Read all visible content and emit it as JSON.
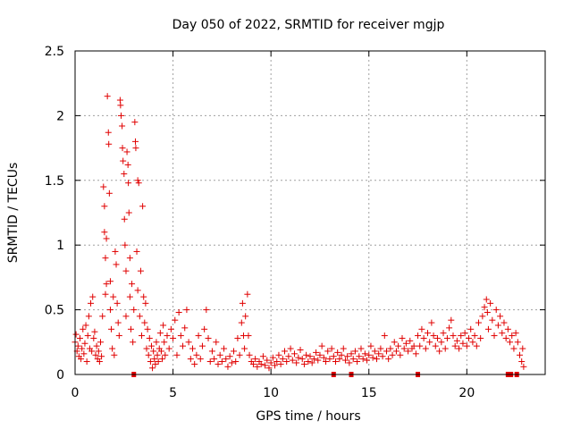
{
  "chart_data": {
    "type": "scatter",
    "title": "Day 050 of 2022, SRMTID for receiver mgjp",
    "xlabel": "GPS time / hours",
    "ylabel": "SRMTID / TECUs",
    "xlim": [
      0,
      24
    ],
    "ylim": [
      0,
      2.5
    ],
    "x_ticks": [
      0,
      5,
      10,
      15,
      20
    ],
    "x_tick_labels": [
      "0",
      "5",
      "10",
      "15",
      "20"
    ],
    "y_ticks": [
      0,
      0.5,
      1,
      1.5,
      2,
      2.5
    ],
    "y_tick_labels": [
      "0",
      "0.5",
      "1",
      "1.5",
      "2",
      "2.5"
    ],
    "grid": true,
    "marker": "plus",
    "color": "#e00000",
    "series": [
      {
        "name": "SRMTID",
        "points": [
          [
            0.0,
            0.25
          ],
          [
            0.05,
            0.31
          ],
          [
            0.1,
            0.18
          ],
          [
            0.15,
            0.22
          ],
          [
            0.2,
            0.14
          ],
          [
            0.25,
            0.28
          ],
          [
            0.3,
            0.12
          ],
          [
            0.35,
            0.2
          ],
          [
            0.4,
            0.35
          ],
          [
            0.45,
            0.16
          ],
          [
            0.5,
            0.24
          ],
          [
            0.55,
            0.38
          ],
          [
            0.6,
            0.1
          ],
          [
            0.65,
            0.3
          ],
          [
            0.7,
            0.45
          ],
          [
            0.75,
            0.2
          ],
          [
            0.8,
            0.55
          ],
          [
            0.85,
            0.18
          ],
          [
            0.9,
            0.6
          ],
          [
            0.95,
            0.28
          ],
          [
            1.0,
            0.33
          ],
          [
            1.05,
            0.15
          ],
          [
            1.1,
            0.22
          ],
          [
            1.15,
            0.12
          ],
          [
            1.2,
            0.18
          ],
          [
            1.25,
            0.1
          ],
          [
            1.3,
            0.25
          ],
          [
            1.35,
            0.14
          ],
          [
            1.4,
            0.45
          ],
          [
            1.45,
            1.45
          ],
          [
            1.5,
            1.3
          ],
          [
            1.5,
            1.1
          ],
          [
            1.55,
            0.9
          ],
          [
            1.55,
            0.62
          ],
          [
            1.6,
            1.05
          ],
          [
            1.6,
            0.7
          ],
          [
            1.65,
            2.15
          ],
          [
            1.7,
            1.87
          ],
          [
            1.72,
            1.78
          ],
          [
            1.75,
            1.4
          ],
          [
            1.8,
            0.72
          ],
          [
            1.8,
            0.5
          ],
          [
            1.85,
            0.35
          ],
          [
            1.9,
            0.2
          ],
          [
            1.95,
            0.6
          ],
          [
            2.0,
            0.15
          ],
          [
            2.05,
            0.95
          ],
          [
            2.1,
            0.85
          ],
          [
            2.15,
            0.55
          ],
          [
            2.2,
            0.4
          ],
          [
            2.25,
            0.3
          ],
          [
            2.3,
            2.12
          ],
          [
            2.32,
            2.08
          ],
          [
            2.35,
            2.0
          ],
          [
            2.4,
            1.92
          ],
          [
            2.42,
            1.75
          ],
          [
            2.45,
            1.65
          ],
          [
            2.5,
            1.55
          ],
          [
            2.52,
            1.2
          ],
          [
            2.55,
            1.0
          ],
          [
            2.6,
            0.8
          ],
          [
            2.6,
            0.45
          ],
          [
            2.65,
            1.72
          ],
          [
            2.7,
            1.62
          ],
          [
            2.72,
            1.48
          ],
          [
            2.75,
            1.25
          ],
          [
            2.8,
            0.9
          ],
          [
            2.8,
            0.6
          ],
          [
            2.85,
            0.35
          ],
          [
            2.9,
            0.7
          ],
          [
            2.95,
            0.25
          ],
          [
            3.0,
            0.5
          ],
          [
            3.05,
            1.95
          ],
          [
            3.08,
            1.8
          ],
          [
            3.1,
            1.75
          ],
          [
            3.15,
            0.95
          ],
          [
            3.2,
            0.65
          ],
          [
            3.2,
            1.5
          ],
          [
            3.25,
            1.48
          ],
          [
            3.3,
            0.45
          ],
          [
            3.35,
            0.8
          ],
          [
            3.4,
            0.3
          ],
          [
            3.45,
            1.3
          ],
          [
            3.5,
            0.6
          ],
          [
            3.55,
            0.4
          ],
          [
            3.6,
            0.55
          ],
          [
            3.65,
            0.2
          ],
          [
            3.7,
            0.35
          ],
          [
            3.75,
            0.15
          ],
          [
            3.8,
            0.28
          ],
          [
            3.85,
            0.1
          ],
          [
            3.9,
            0.22
          ],
          [
            3.95,
            0.05
          ],
          [
            4.0,
            0.18
          ],
          [
            4.05,
            0.12
          ],
          [
            4.1,
            0.08
          ],
          [
            4.15,
            0.25
          ],
          [
            4.2,
            0.15
          ],
          [
            4.25,
            0.1
          ],
          [
            4.3,
            0.2
          ],
          [
            4.35,
            0.32
          ],
          [
            4.4,
            0.18
          ],
          [
            4.45,
            0.12
          ],
          [
            4.5,
            0.38
          ],
          [
            4.55,
            0.25
          ],
          [
            4.6,
            0.15
          ],
          [
            4.7,
            0.3
          ],
          [
            4.8,
            0.2
          ],
          [
            4.9,
            0.35
          ],
          [
            5.0,
            0.28
          ],
          [
            5.1,
            0.42
          ],
          [
            5.2,
            0.15
          ],
          [
            5.3,
            0.48
          ],
          [
            5.4,
            0.3
          ],
          [
            5.5,
            0.22
          ],
          [
            5.6,
            0.36
          ],
          [
            5.7,
            0.5
          ],
          [
            5.8,
            0.25
          ],
          [
            5.9,
            0.12
          ],
          [
            6.0,
            0.2
          ],
          [
            6.1,
            0.08
          ],
          [
            6.2,
            0.15
          ],
          [
            6.3,
            0.3
          ],
          [
            6.4,
            0.12
          ],
          [
            6.5,
            0.22
          ],
          [
            6.6,
            0.35
          ],
          [
            6.7,
            0.5
          ],
          [
            6.8,
            0.28
          ],
          [
            6.9,
            0.1
          ],
          [
            7.0,
            0.18
          ],
          [
            7.1,
            0.12
          ],
          [
            7.2,
            0.25
          ],
          [
            7.3,
            0.08
          ],
          [
            7.4,
            0.15
          ],
          [
            7.5,
            0.1
          ],
          [
            7.6,
            0.2
          ],
          [
            7.7,
            0.12
          ],
          [
            7.8,
            0.06
          ],
          [
            7.9,
            0.14
          ],
          [
            8.0,
            0.09
          ],
          [
            8.1,
            0.18
          ],
          [
            8.2,
            0.1
          ],
          [
            8.3,
            0.28
          ],
          [
            8.4,
            0.15
          ],
          [
            8.5,
            0.4
          ],
          [
            8.55,
            0.55
          ],
          [
            8.6,
            0.3
          ],
          [
            8.65,
            0.2
          ],
          [
            8.7,
            0.45
          ],
          [
            8.8,
            0.62
          ],
          [
            8.85,
            0.3
          ],
          [
            8.9,
            0.15
          ],
          [
            9.0,
            0.1
          ],
          [
            9.1,
            0.08
          ],
          [
            9.2,
            0.12
          ],
          [
            9.3,
            0.06
          ],
          [
            9.4,
            0.1
          ],
          [
            9.5,
            0.08
          ],
          [
            9.6,
            0.14
          ],
          [
            9.7,
            0.07
          ],
          [
            9.8,
            0.11
          ],
          [
            9.9,
            0.05
          ],
          [
            10.0,
            0.09
          ],
          [
            10.1,
            0.13
          ],
          [
            10.2,
            0.07
          ],
          [
            10.3,
            0.1
          ],
          [
            10.4,
            0.15
          ],
          [
            10.5,
            0.08
          ],
          [
            10.6,
            0.12
          ],
          [
            10.7,
            0.18
          ],
          [
            10.8,
            0.1
          ],
          [
            10.9,
            0.14
          ],
          [
            11.0,
            0.2
          ],
          [
            11.1,
            0.11
          ],
          [
            11.2,
            0.16
          ],
          [
            11.3,
            0.09
          ],
          [
            11.4,
            0.13
          ],
          [
            11.5,
            0.19
          ],
          [
            11.6,
            0.12
          ],
          [
            11.7,
            0.08
          ],
          [
            11.8,
            0.15
          ],
          [
            11.9,
            0.1
          ],
          [
            12.0,
            0.14
          ],
          [
            12.1,
            0.09
          ],
          [
            12.2,
            0.12
          ],
          [
            12.3,
            0.17
          ],
          [
            12.4,
            0.11
          ],
          [
            12.5,
            0.15
          ],
          [
            12.6,
            0.22
          ],
          [
            12.7,
            0.13
          ],
          [
            12.8,
            0.1
          ],
          [
            12.9,
            0.18
          ],
          [
            13.0,
            0.12
          ],
          [
            13.1,
            0.2
          ],
          [
            13.2,
            0.14
          ],
          [
            13.3,
            0.1
          ],
          [
            13.4,
            0.17
          ],
          [
            13.5,
            0.12
          ],
          [
            13.6,
            0.15
          ],
          [
            13.7,
            0.2
          ],
          [
            13.8,
            0.11
          ],
          [
            13.9,
            0.14
          ],
          [
            14.0,
            0.09
          ],
          [
            14.1,
            0.16
          ],
          [
            14.2,
            0.12
          ],
          [
            14.3,
            0.18
          ],
          [
            14.4,
            0.1
          ],
          [
            14.5,
            0.14
          ],
          [
            14.6,
            0.2
          ],
          [
            14.7,
            0.12
          ],
          [
            14.8,
            0.16
          ],
          [
            14.9,
            0.11
          ],
          [
            15.0,
            0.15
          ],
          [
            15.1,
            0.22
          ],
          [
            15.2,
            0.13
          ],
          [
            15.3,
            0.18
          ],
          [
            15.4,
            0.12
          ],
          [
            15.5,
            0.16
          ],
          [
            15.6,
            0.2
          ],
          [
            15.7,
            0.14
          ],
          [
            15.8,
            0.3
          ],
          [
            15.9,
            0.18
          ],
          [
            16.0,
            0.12
          ],
          [
            16.1,
            0.2
          ],
          [
            16.2,
            0.15
          ],
          [
            16.3,
            0.25
          ],
          [
            16.4,
            0.18
          ],
          [
            16.5,
            0.22
          ],
          [
            16.6,
            0.15
          ],
          [
            16.7,
            0.28
          ],
          [
            16.8,
            0.2
          ],
          [
            16.9,
            0.24
          ],
          [
            17.0,
            0.18
          ],
          [
            17.1,
            0.26
          ],
          [
            17.2,
            0.2
          ],
          [
            17.3,
            0.22
          ],
          [
            17.4,
            0.16
          ],
          [
            17.5,
            0.3
          ],
          [
            17.6,
            0.22
          ],
          [
            17.7,
            0.35
          ],
          [
            17.8,
            0.28
          ],
          [
            17.9,
            0.2
          ],
          [
            18.0,
            0.32
          ],
          [
            18.1,
            0.25
          ],
          [
            18.2,
            0.4
          ],
          [
            18.3,
            0.3
          ],
          [
            18.4,
            0.22
          ],
          [
            18.5,
            0.28
          ],
          [
            18.6,
            0.18
          ],
          [
            18.7,
            0.25
          ],
          [
            18.8,
            0.32
          ],
          [
            18.9,
            0.2
          ],
          [
            19.0,
            0.28
          ],
          [
            19.1,
            0.36
          ],
          [
            19.2,
            0.42
          ],
          [
            19.3,
            0.3
          ],
          [
            19.4,
            0.22
          ],
          [
            19.5,
            0.26
          ],
          [
            19.6,
            0.2
          ],
          [
            19.7,
            0.3
          ],
          [
            19.8,
            0.24
          ],
          [
            19.9,
            0.32
          ],
          [
            20.0,
            0.22
          ],
          [
            20.1,
            0.28
          ],
          [
            20.2,
            0.35
          ],
          [
            20.3,
            0.25
          ],
          [
            20.4,
            0.3
          ],
          [
            20.5,
            0.22
          ],
          [
            20.6,
            0.4
          ],
          [
            20.7,
            0.28
          ],
          [
            20.8,
            0.45
          ],
          [
            20.9,
            0.52
          ],
          [
            21.0,
            0.58
          ],
          [
            21.05,
            0.48
          ],
          [
            21.1,
            0.35
          ],
          [
            21.2,
            0.55
          ],
          [
            21.3,
            0.42
          ],
          [
            21.4,
            0.3
          ],
          [
            21.5,
            0.5
          ],
          [
            21.6,
            0.38
          ],
          [
            21.7,
            0.45
          ],
          [
            21.8,
            0.32
          ],
          [
            21.9,
            0.4
          ],
          [
            22.0,
            0.28
          ],
          [
            22.1,
            0.35
          ],
          [
            22.2,
            0.25
          ],
          [
            22.3,
            0.3
          ],
          [
            22.4,
            0.2
          ],
          [
            22.5,
            0.32
          ],
          [
            22.6,
            0.25
          ],
          [
            22.7,
            0.15
          ],
          [
            22.8,
            0.1
          ],
          [
            22.85,
            0.2
          ],
          [
            22.9,
            0.06
          ]
        ]
      }
    ],
    "gap_markers_x": [
      3.0,
      13.2,
      14.1,
      17.5,
      22.1,
      22.25,
      22.55
    ]
  }
}
